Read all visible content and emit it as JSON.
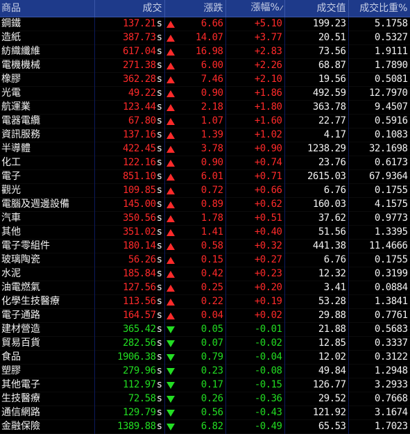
{
  "headers": {
    "name": "商品",
    "price": "成交",
    "change": "漲跌",
    "pct": "漲幅%",
    "value": "成交值",
    "ratio": "成交比重%"
  },
  "colors": {
    "up": "#ff2a2a",
    "down": "#22dd22",
    "header_bg": "#1e3a8a"
  },
  "rows": [
    {
      "name": "鋼鐵",
      "price": "137.21",
      "unit": "s",
      "dir": "up",
      "change": "6.66",
      "pct": "+5.10",
      "value": "199.23",
      "ratio": "5.1758"
    },
    {
      "name": "造紙",
      "price": "387.73",
      "unit": "s",
      "dir": "up",
      "change": "14.07",
      "pct": "+3.77",
      "value": "20.51",
      "ratio": "0.5327"
    },
    {
      "name": "紡織纖維",
      "price": "617.04",
      "unit": "s",
      "dir": "up",
      "change": "16.98",
      "pct": "+2.83",
      "value": "73.56",
      "ratio": "1.9111"
    },
    {
      "name": "電機機械",
      "price": "271.38",
      "unit": "s",
      "dir": "up",
      "change": "6.00",
      "pct": "+2.26",
      "value": "68.87",
      "ratio": "1.7890"
    },
    {
      "name": "橡膠",
      "price": "362.28",
      "unit": "s",
      "dir": "up",
      "change": "7.46",
      "pct": "+2.10",
      "value": "19.56",
      "ratio": "0.5081"
    },
    {
      "name": "光電",
      "price": "49.22",
      "unit": "s",
      "dir": "up",
      "change": "0.90",
      "pct": "+1.86",
      "value": "492.59",
      "ratio": "12.7970"
    },
    {
      "name": "航運業",
      "price": "123.44",
      "unit": "s",
      "dir": "up",
      "change": "2.18",
      "pct": "+1.80",
      "value": "363.78",
      "ratio": "9.4507"
    },
    {
      "name": "電器電纜",
      "price": "67.80",
      "unit": "s",
      "dir": "up",
      "change": "1.07",
      "pct": "+1.60",
      "value": "22.77",
      "ratio": "0.5916"
    },
    {
      "name": "資訊服務",
      "price": "137.16",
      "unit": "s",
      "dir": "up",
      "change": "1.39",
      "pct": "+1.02",
      "value": "4.17",
      "ratio": "0.1083"
    },
    {
      "name": "半導體",
      "price": "422.45",
      "unit": "s",
      "dir": "up",
      "change": "3.78",
      "pct": "+0.90",
      "value": "1238.29",
      "ratio": "32.1698"
    },
    {
      "name": "化工",
      "price": "122.16",
      "unit": "s",
      "dir": "up",
      "change": "0.90",
      "pct": "+0.74",
      "value": "23.76",
      "ratio": "0.6173"
    },
    {
      "name": "電子",
      "price": "851.10",
      "unit": "s",
      "dir": "up",
      "change": "6.01",
      "pct": "+0.71",
      "value": "2615.03",
      "ratio": "67.9364"
    },
    {
      "name": "觀光",
      "price": "109.85",
      "unit": "s",
      "dir": "up",
      "change": "0.72",
      "pct": "+0.66",
      "value": "6.76",
      "ratio": "0.1755"
    },
    {
      "name": "電腦及週邊設備",
      "price": "145.00",
      "unit": "s",
      "dir": "up",
      "change": "0.89",
      "pct": "+0.62",
      "value": "160.03",
      "ratio": "4.1575"
    },
    {
      "name": "汽車",
      "price": "350.56",
      "unit": "s",
      "dir": "up",
      "change": "1.78",
      "pct": "+0.51",
      "value": "37.62",
      "ratio": "0.9773"
    },
    {
      "name": "其他",
      "price": "351.02",
      "unit": "s",
      "dir": "up",
      "change": "1.41",
      "pct": "+0.40",
      "value": "51.56",
      "ratio": "1.3395"
    },
    {
      "name": "電子零組件",
      "price": "180.14",
      "unit": "s",
      "dir": "up",
      "change": "0.58",
      "pct": "+0.32",
      "value": "441.38",
      "ratio": "11.4666"
    },
    {
      "name": "玻璃陶瓷",
      "price": "56.26",
      "unit": "s",
      "dir": "up",
      "change": "0.15",
      "pct": "+0.27",
      "value": "6.76",
      "ratio": "0.1755"
    },
    {
      "name": "水泥",
      "price": "185.84",
      "unit": "s",
      "dir": "up",
      "change": "0.42",
      "pct": "+0.23",
      "value": "12.32",
      "ratio": "0.3199"
    },
    {
      "name": "油電燃氣",
      "price": "127.56",
      "unit": "s",
      "dir": "up",
      "change": "0.25",
      "pct": "+0.20",
      "value": "3.41",
      "ratio": "0.0884"
    },
    {
      "name": "化學生技醫療",
      "price": "113.56",
      "unit": "s",
      "dir": "up",
      "change": "0.22",
      "pct": "+0.19",
      "value": "53.28",
      "ratio": "1.3841"
    },
    {
      "name": "電子通路",
      "price": "164.57",
      "unit": "s",
      "dir": "up",
      "change": "0.04",
      "pct": "+0.02",
      "value": "29.88",
      "ratio": "0.7761"
    },
    {
      "name": "建材營造",
      "price": "365.42",
      "unit": "s",
      "dir": "down",
      "change": "0.05",
      "pct": "-0.01",
      "value": "21.88",
      "ratio": "0.5683"
    },
    {
      "name": "貿易百貨",
      "price": "282.56",
      "unit": "s",
      "dir": "down",
      "change": "0.07",
      "pct": "-0.02",
      "value": "12.85",
      "ratio": "0.3337"
    },
    {
      "name": "食品",
      "price": "1906.38",
      "unit": "s",
      "dir": "down",
      "change": "0.79",
      "pct": "-0.04",
      "value": "12.02",
      "ratio": "0.3122"
    },
    {
      "name": "塑膠",
      "price": "279.96",
      "unit": "s",
      "dir": "down",
      "change": "0.23",
      "pct": "-0.08",
      "value": "49.84",
      "ratio": "1.2948"
    },
    {
      "name": "其他電子",
      "price": "112.97",
      "unit": "s",
      "dir": "down",
      "change": "0.17",
      "pct": "-0.15",
      "value": "126.77",
      "ratio": "3.2933"
    },
    {
      "name": "生技醫療",
      "price": "72.58",
      "unit": "s",
      "dir": "down",
      "change": "0.26",
      "pct": "-0.36",
      "value": "29.52",
      "ratio": "0.7668"
    },
    {
      "name": "通信網路",
      "price": "129.79",
      "unit": "s",
      "dir": "down",
      "change": "0.56",
      "pct": "-0.43",
      "value": "121.92",
      "ratio": "3.1674"
    },
    {
      "name": "金融保險",
      "price": "1389.88",
      "unit": "s",
      "dir": "down",
      "change": "6.82",
      "pct": "-0.49",
      "value": "65.53",
      "ratio": "1.7023"
    }
  ]
}
